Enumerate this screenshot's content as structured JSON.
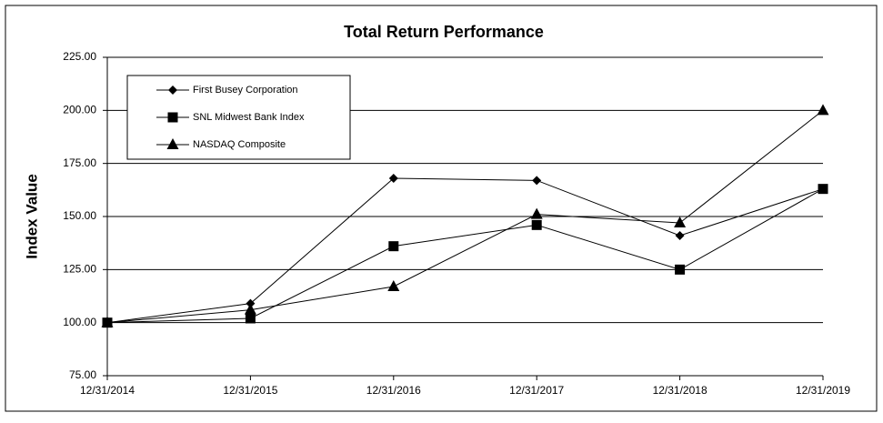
{
  "chart_data": {
    "type": "line",
    "title": "Total Return Performance",
    "y_label": "Index Value",
    "categories": [
      "12/31/2014",
      "12/31/2015",
      "12/31/2016",
      "12/31/2017",
      "12/31/2018",
      "12/31/2019"
    ],
    "series": [
      {
        "name": "First Busey Corporation",
        "color": "#000000",
        "marker": "diamond",
        "values": [
          100,
          109,
          168,
          167,
          141,
          163
        ]
      },
      {
        "name": "SNL Midwest Bank Index",
        "color": "#000000",
        "marker": "square",
        "values": [
          100,
          102,
          136,
          146,
          125,
          163
        ]
      },
      {
        "name": "NASDAQ Composite",
        "color": "#000000",
        "marker": "triangle",
        "values": [
          100,
          106,
          117,
          151,
          147,
          200
        ]
      }
    ],
    "ylim": [
      75,
      225
    ],
    "yticks": [
      {
        "value": 75,
        "label": "75.00"
      },
      {
        "value": 100,
        "label": "100.00"
      },
      {
        "value": 125,
        "label": "125.00"
      },
      {
        "value": 150,
        "label": "150.00"
      },
      {
        "value": 175,
        "label": "175.00"
      },
      {
        "value": 200,
        "label": "200.00"
      },
      {
        "value": 225,
        "label": "225.00"
      }
    ],
    "grid": true,
    "legend": "top-left"
  }
}
